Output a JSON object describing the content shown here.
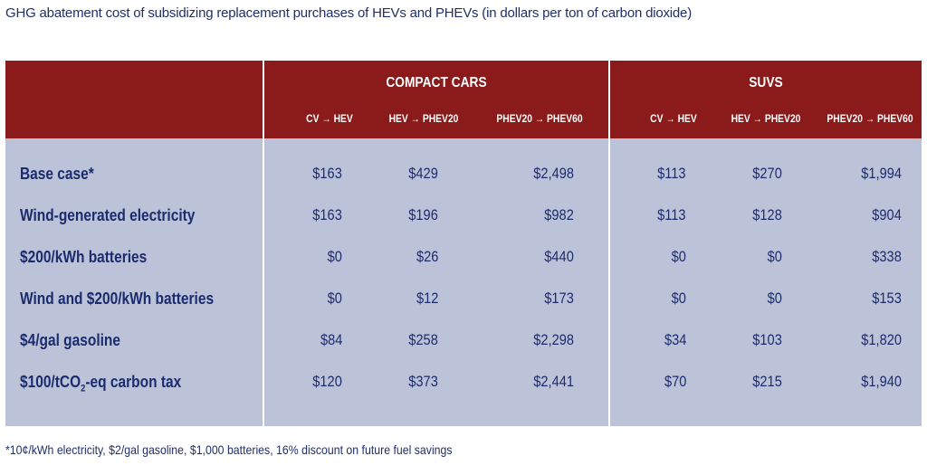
{
  "title": "GHG abatement cost of subsidizing replacement purchases of HEVs and PHEVs (in dollars per ton of carbon dioxide)",
  "groups": [
    {
      "label": "COMPACT CARS"
    },
    {
      "label": "SUVS"
    }
  ],
  "columns": [
    "CV → HEV",
    "HEV → PHEV20",
    "PHEV20 → PHEV60",
    "CV → HEV",
    "HEV → PHEV20",
    "PHEV20 → PHEV60"
  ],
  "rows": [
    {
      "label": "Base case*",
      "values": [
        "$163",
        "$429",
        "$2,498",
        "$113",
        "$270",
        "$1,994"
      ]
    },
    {
      "label": "Wind-generated electricity",
      "values": [
        "$163",
        "$196",
        "$982",
        "$113",
        "$128",
        "$904"
      ]
    },
    {
      "label": "$200/kWh batteries",
      "values": [
        "$0",
        "$26",
        "$440",
        "$0",
        "$0",
        "$338"
      ]
    },
    {
      "label": "Wind and $200/kWh batteries",
      "values": [
        "$0",
        "$12",
        "$173",
        "$0",
        "$0",
        "$153"
      ]
    },
    {
      "label": "$4/gal gasoline",
      "values": [
        "$84",
        "$258",
        "$2,298",
        "$34",
        "$103",
        "$1,820"
      ]
    },
    {
      "label_pre": "$100/tCO",
      "label_sub": "2",
      "label_post": "-eq carbon tax",
      "values": [
        "$120",
        "$373",
        "$2,441",
        "$70",
        "$215",
        "$1,940"
      ]
    }
  ],
  "footnote": "*10¢/kWh electricity, $2/gal gasoline, $1,000 batteries, 16% discount on future fuel savings",
  "colors": {
    "header_bg": "#8b1a1a",
    "body_bg": "#bcc3d8",
    "text": "#1b2b6e"
  }
}
